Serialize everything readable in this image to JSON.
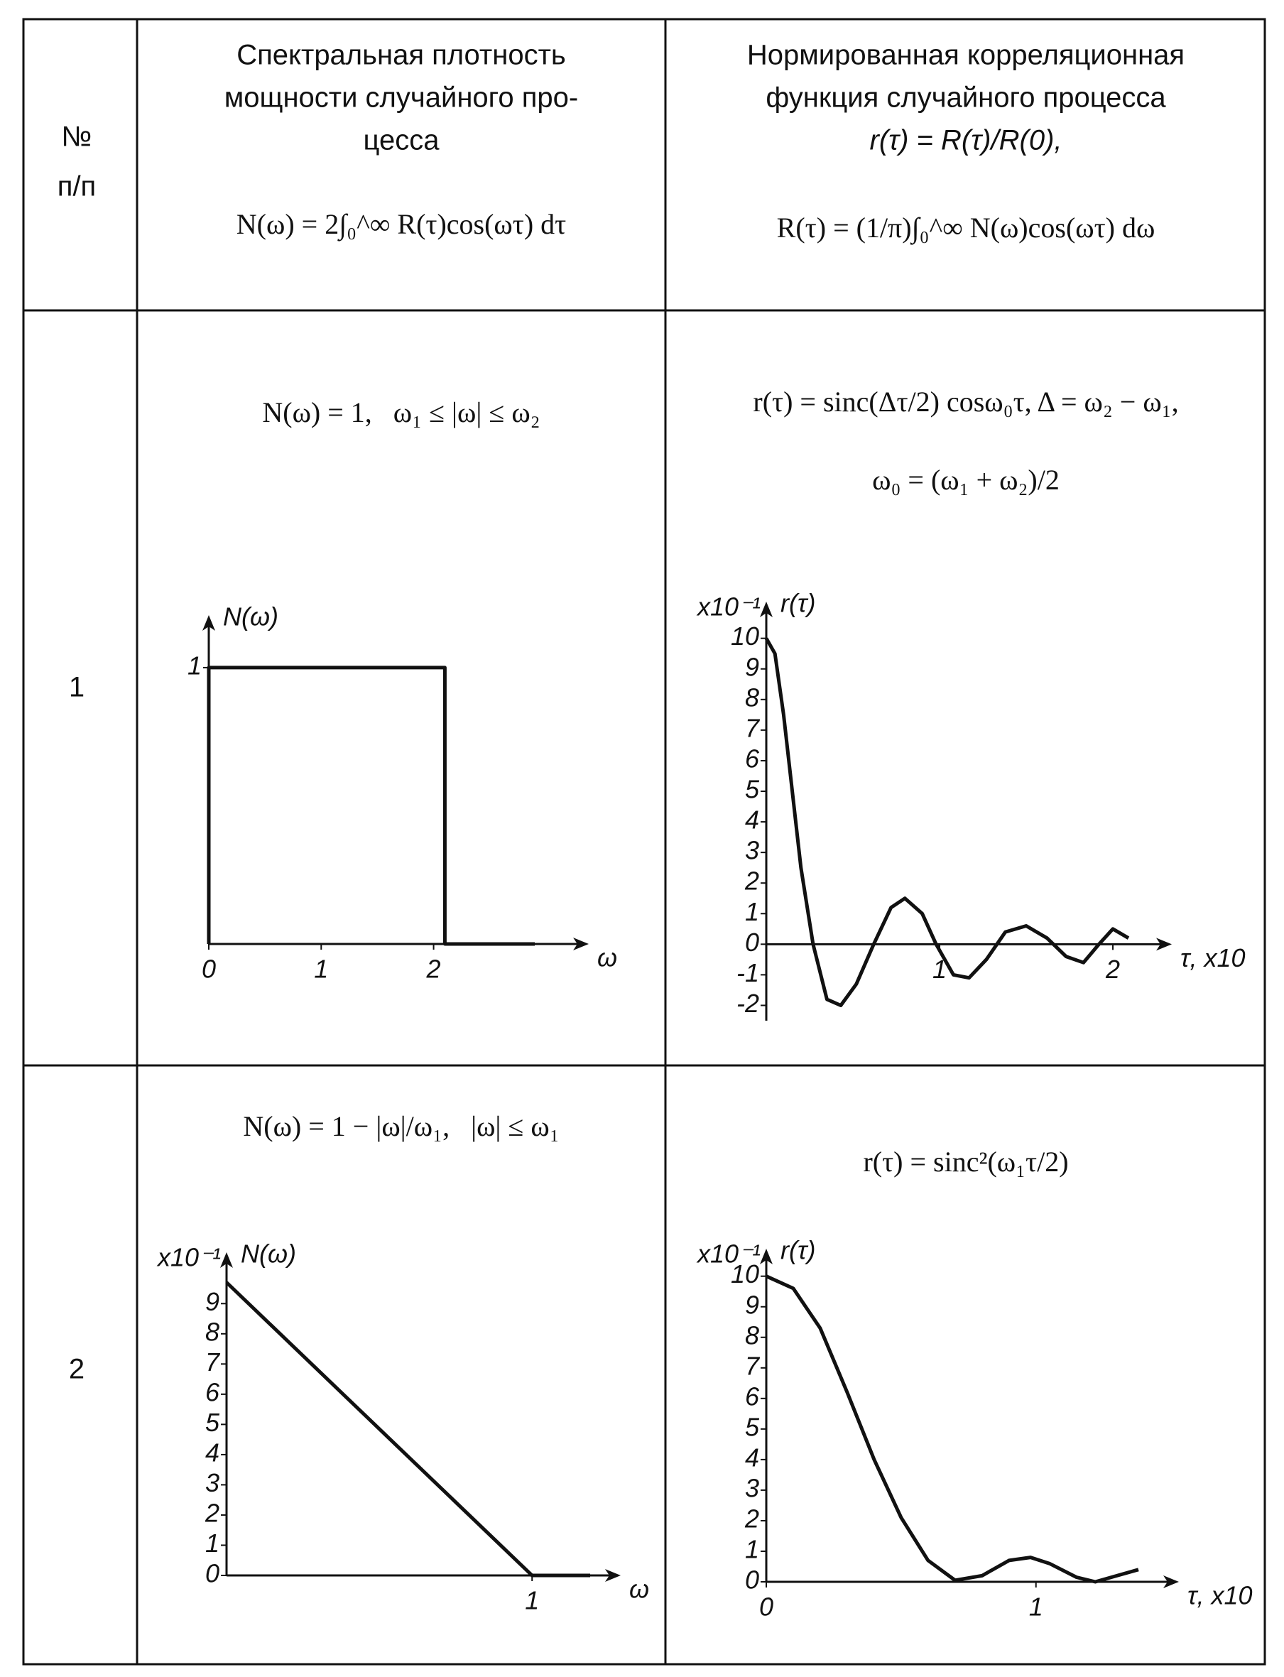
{
  "header": {
    "number": [
      "№",
      "п/п"
    ],
    "spectrum_title": [
      "Спектральная плотность",
      "мощности случайного про-",
      "цесса"
    ],
    "spectrum_formula": "N(ω) = 2∫₀^∞ R(τ)cos(ωτ) dτ",
    "correlation_title": [
      "Нормированная корреляционная",
      "функция случайного процесса",
      "r(τ) = R(τ)/R(0),"
    ],
    "correlation_formula": "R(τ) = (1/π)∫₀^∞ N(ω)cos(ωτ) dω"
  },
  "rows": [
    {
      "number": "1",
      "spectrum_formula": "N(ω) = 1,   ω₁ ≤ |ω| ≤ ω₂",
      "correlation_formula": [
        "r(τ) = sinc(Δτ/2) cosω₀τ, Δ = ω₂ − ω₁,",
        "ω₀ = (ω₁ + ω₂)/2"
      ],
      "spectrum_chart": {
        "type": "line",
        "y_label": "N(ω)",
        "x_label": "ω",
        "x": [
          0,
          0,
          2.1,
          2.1,
          2.9
        ],
        "values": [
          0,
          1,
          1,
          0,
          0
        ],
        "xlim": [
          0,
          3.38
        ],
        "ylim": [
          0,
          1.19
        ],
        "xticks": [
          0,
          1,
          2
        ],
        "yticks": [
          1
        ]
      },
      "correlation_chart": {
        "type": "line",
        "y_label": "r(τ)",
        "x_label": "τ, x10",
        "y_multiplier": "x10⁻¹",
        "x": [
          0,
          0.05,
          0.1,
          0.15,
          0.2,
          0.27,
          0.35,
          0.43,
          0.52,
          0.62,
          0.72,
          0.8,
          0.9,
          0.98,
          1.08,
          1.17,
          1.27,
          1.38,
          1.5,
          1.62,
          1.73,
          1.83,
          1.92,
          2.0,
          2.09
        ],
        "values": [
          10,
          9.5,
          7.5,
          5,
          2.5,
          0,
          -1.8,
          -2,
          -1.3,
          0,
          1.2,
          1.5,
          1,
          0,
          -1,
          -1.1,
          -0.5,
          0.4,
          0.6,
          0.2,
          -0.4,
          -0.6,
          0,
          0.5,
          0.2
        ],
        "xlim": [
          0,
          2.34
        ],
        "ylim": [
          -2.5,
          11.2
        ],
        "xticks": [
          1,
          2
        ],
        "yticks": [
          -2,
          -1,
          0,
          1,
          2,
          3,
          4,
          5,
          6,
          7,
          8,
          9,
          10
        ]
      }
    },
    {
      "number": "2",
      "spectrum_formula": "N(ω) = 1 − |ω|/ω₁,   |ω| ≤ ω₁",
      "correlation_formula": [
        "r(τ) = sinc²(ω₁τ/2)"
      ],
      "spectrum_chart": {
        "type": "line",
        "y_label": "N(ω)",
        "x_label": "ω",
        "y_multiplier": "x10⁻¹",
        "x": [
          0,
          1,
          1.19
        ],
        "values": [
          9.7,
          0,
          0
        ],
        "xlim": [
          0,
          1.29
        ],
        "ylim": [
          0,
          10.7
        ],
        "xticks": [
          1
        ],
        "yticks": [
          0,
          1,
          2,
          3,
          4,
          5,
          6,
          7,
          8,
          9
        ]
      },
      "correlation_chart": {
        "type": "line",
        "y_label": "r(τ)",
        "x_label": "τ, x10",
        "y_multiplier": "x10⁻¹",
        "x": [
          0,
          0.1,
          0.2,
          0.3,
          0.4,
          0.5,
          0.6,
          0.7,
          0.8,
          0.9,
          0.98,
          1.05,
          1.15,
          1.22,
          1.3,
          1.38
        ],
        "values": [
          10,
          9.6,
          8.3,
          6.2,
          4,
          2.1,
          0.7,
          0.05,
          0.2,
          0.7,
          0.8,
          0.6,
          0.15,
          0,
          0.2,
          0.4
        ],
        "xlim": [
          0,
          1.53
        ],
        "ylim": [
          0,
          10.9
        ],
        "xticks": [
          0,
          1
        ],
        "yticks": [
          0,
          1,
          2,
          3,
          4,
          5,
          6,
          7,
          8,
          9,
          10
        ]
      }
    }
  ]
}
